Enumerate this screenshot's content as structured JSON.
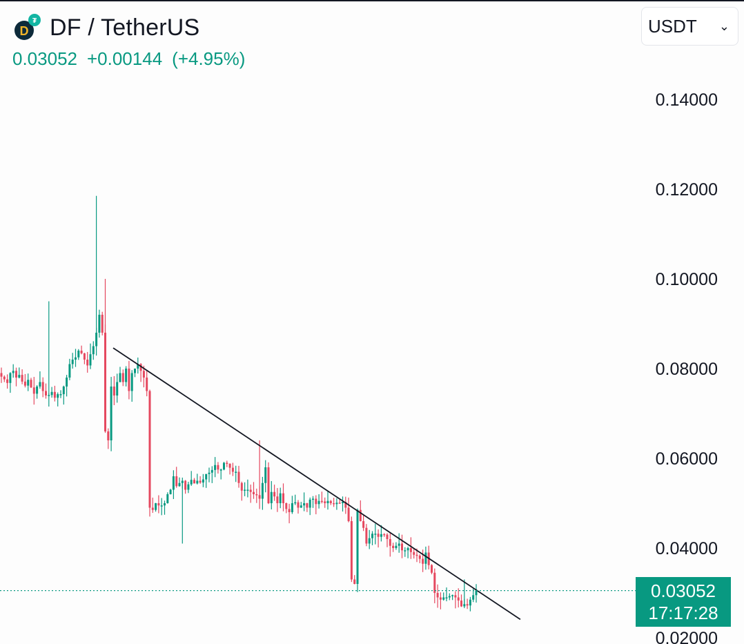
{
  "header": {
    "pair": "DF / TetherUS",
    "last_price": "0.03052",
    "change": "+0.00144",
    "change_pct": "(+4.95%)",
    "currency": "USDT"
  },
  "colors": {
    "up": "#089981",
    "down": "#e5485f",
    "trendline": "#131722"
  },
  "chart_data": {
    "type": "candlestick",
    "ylim": [
      0.018,
      0.151
    ],
    "y_ticks": [
      {
        "label": "0.14000",
        "value": 0.14
      },
      {
        "label": "0.12000",
        "value": 0.12
      },
      {
        "label": "0.10000",
        "value": 0.1
      },
      {
        "label": "0.08000",
        "value": 0.08
      },
      {
        "label": "0.06000",
        "value": 0.06
      },
      {
        "label": "0.04000",
        "value": 0.04
      },
      {
        "label": "0.02000",
        "value": 0.02
      }
    ],
    "current_price": 0.03052,
    "current_price_label": "0.03052",
    "countdown": "17:17:28",
    "trendline": {
      "start": [
        40,
        0.0846
      ],
      "end": [
        183,
        0.0241
      ]
    },
    "closes": [
      0.0782,
      0.0776,
      0.0768,
      0.079,
      0.0795,
      0.078,
      0.0786,
      0.0771,
      0.0762,
      0.0775,
      0.0758,
      0.0744,
      0.076,
      0.077,
      0.075,
      0.074,
      0.0741,
      0.0748,
      0.0735,
      0.0743,
      0.0743,
      0.076,
      0.078,
      0.081,
      0.082,
      0.0825,
      0.084,
      0.0834,
      0.082,
      0.0807,
      0.0832,
      0.085,
      0.088,
      0.092,
      0.088,
      0.066,
      0.064,
      0.076,
      0.074,
      0.077,
      0.079,
      0.077,
      0.08,
      0.075,
      0.079,
      0.08,
      0.081,
      0.0795,
      0.078,
      0.075,
      0.049,
      0.0485,
      0.05,
      0.0495,
      0.0495,
      0.05,
      0.052,
      0.053,
      0.056,
      0.0538,
      0.0545,
      0.055,
      0.053,
      0.0542,
      0.0552,
      0.0544,
      0.055,
      0.0546,
      0.0553,
      0.0565,
      0.0568,
      0.0574,
      0.0585,
      0.0575,
      0.0575,
      0.059,
      0.0588,
      0.0579,
      0.057,
      0.057,
      0.0545,
      0.0528,
      0.053,
      0.053,
      0.0525,
      0.052,
      0.0518,
      0.051,
      0.0545,
      0.058,
      0.05,
      0.0525,
      0.0515,
      0.05,
      0.0522,
      0.05,
      0.0487,
      0.048,
      0.05,
      0.0502,
      0.049,
      0.0495,
      0.05,
      0.049,
      0.0508,
      0.051,
      0.0498,
      0.0505,
      0.0504,
      0.05,
      0.0505,
      0.05,
      0.0498,
      0.0501,
      0.05,
      0.0503,
      0.049,
      0.046,
      0.033,
      0.032,
      0.0485,
      0.046,
      0.0445,
      0.041,
      0.0422,
      0.0432,
      0.0432,
      0.0425,
      0.0431,
      0.043,
      0.042,
      0.0405,
      0.04,
      0.0405,
      0.041,
      0.0395,
      0.0395,
      0.04,
      0.0391,
      0.0385,
      0.0383,
      0.0376,
      0.0365,
      0.039,
      0.0362,
      0.0345,
      0.03,
      0.029,
      0.0285,
      0.029,
      0.029,
      0.0293,
      0.0295,
      0.029,
      0.0283,
      0.027,
      0.0275,
      0.0272,
      0.0285,
      0.0295,
      0.0305
    ]
  }
}
